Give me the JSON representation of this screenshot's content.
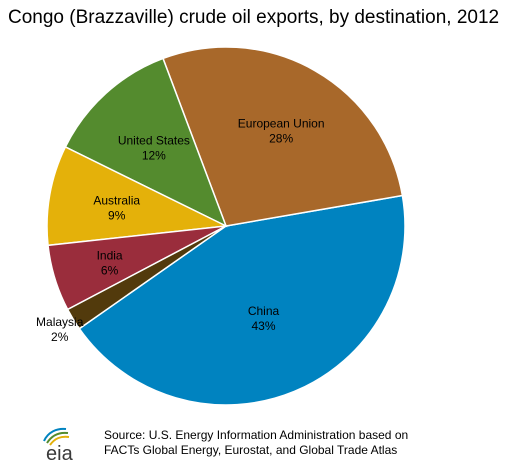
{
  "title": "Congo (Brazzaville) crude oil exports, by destination, 2012",
  "source": "Source: U.S. Energy Information Administration based on\nFACTs Global Energy, Eurostat, and Global Trade Atlas",
  "logo_text": "eia",
  "colors": {
    "china": "#0083C0",
    "european_union": "#A8682A",
    "united_states": "#548B2E",
    "australia": "#E4B10A",
    "india": "#9A2D3C",
    "malaysia": "#523A0C"
  },
  "chart_data": {
    "type": "pie",
    "title": "Congo (Brazzaville) crude oil exports, by destination, 2012",
    "slices": [
      {
        "name": "China",
        "value": 43,
        "label": "43%",
        "color": "#0083C0"
      },
      {
        "name": "European Union",
        "value": 28,
        "label": "28%",
        "color": "#A8682A"
      },
      {
        "name": "United States",
        "value": 12,
        "label": "12%",
        "color": "#548B2E"
      },
      {
        "name": "Australia",
        "value": 9,
        "label": "9%",
        "color": "#E4B10A"
      },
      {
        "name": "India",
        "value": 6,
        "label": "6%",
        "color": "#9A2D3C"
      },
      {
        "name": "Malaysia",
        "value": 2,
        "label": "2%",
        "color": "#523A0C"
      }
    ]
  }
}
